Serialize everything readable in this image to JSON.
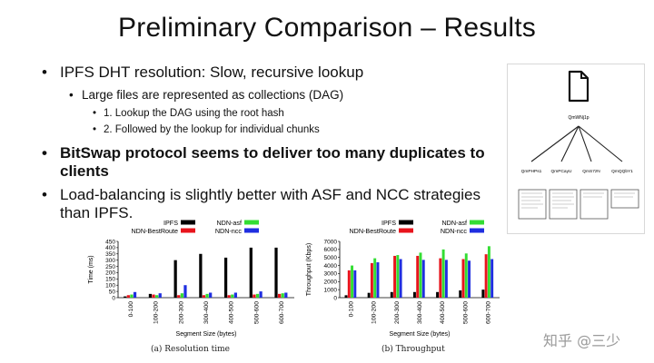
{
  "slide": {
    "title": "Preliminary Comparison – Results",
    "bullets": [
      {
        "text": "IPFS DHT resolution: Slow, recursive lookup"
      },
      {
        "text": "Large files are represented as collections (DAG)"
      },
      {
        "text": "1. Lookup the DAG using the root hash"
      },
      {
        "text": "2. Followed by the lookup for individual chunks"
      },
      {
        "text": "BitSwap protocol seems to deliver too many duplicates to clients"
      },
      {
        "text": "Load-balancing is slightly better with ASF and NCC strategies than IPFS."
      }
    ]
  },
  "diagram": {
    "root_label": "QmWNj1p",
    "children": [
      {
        "label": "QmPHPs1"
      },
      {
        "label": "QmPCayU"
      },
      {
        "label": "QmS7zN"
      },
      {
        "label": "QmQQbY1"
      }
    ],
    "icon": "document-icon"
  },
  "chart_data": [
    {
      "type": "bar",
      "caption": "(a) Resolution time",
      "xlabel": "Segment Size (bytes)",
      "ylabel": "Time (ms)",
      "ylim": [
        0,
        450
      ],
      "yticks": [
        0,
        50,
        100,
        150,
        200,
        250,
        300,
        350,
        400,
        450
      ],
      "categories": [
        "0-100",
        "100-200",
        "200-300",
        "300-400",
        "400-500",
        "500-600",
        "600-700"
      ],
      "legend_position": "top",
      "series": [
        {
          "name": "IPFS",
          "color": "#000000",
          "values": [
            10,
            30,
            300,
            350,
            320,
            400,
            400
          ]
        },
        {
          "name": "NDN-BestRoute",
          "color": "#e8141c",
          "values": [
            20,
            25,
            20,
            20,
            20,
            25,
            30
          ]
        },
        {
          "name": "NDN-asf",
          "color": "#33dd33",
          "values": [
            25,
            20,
            35,
            30,
            25,
            30,
            35
          ]
        },
        {
          "name": "NDN-ncc",
          "color": "#1f2ee0",
          "values": [
            45,
            35,
            100,
            40,
            40,
            50,
            40
          ]
        }
      ]
    },
    {
      "type": "bar",
      "caption": "(b) Throughput",
      "xlabel": "Segment Size (bytes)",
      "ylabel": "Throughput (Kbps)",
      "ylim": [
        0,
        7000
      ],
      "yticks": [
        0,
        1000,
        2000,
        3000,
        4000,
        5000,
        6000,
        7000
      ],
      "categories": [
        "0-100",
        "100-200",
        "200-300",
        "300-400",
        "400-500",
        "500-600",
        "600-700"
      ],
      "legend_position": "top",
      "series": [
        {
          "name": "IPFS",
          "color": "#000000",
          "values": [
            300,
            600,
            700,
            700,
            700,
            900,
            1000
          ]
        },
        {
          "name": "NDN-BestRoute",
          "color": "#e8141c",
          "values": [
            3400,
            4300,
            5200,
            5200,
            4900,
            4800,
            5400
          ]
        },
        {
          "name": "NDN-asf",
          "color": "#33dd33",
          "values": [
            4000,
            4900,
            5300,
            5600,
            6000,
            5500,
            6400
          ]
        },
        {
          "name": "NDN-ncc",
          "color": "#1f2ee0",
          "values": [
            3400,
            4400,
            4800,
            4700,
            4700,
            4600,
            4800
          ]
        }
      ]
    }
  ],
  "watermark": "知乎 @三少"
}
